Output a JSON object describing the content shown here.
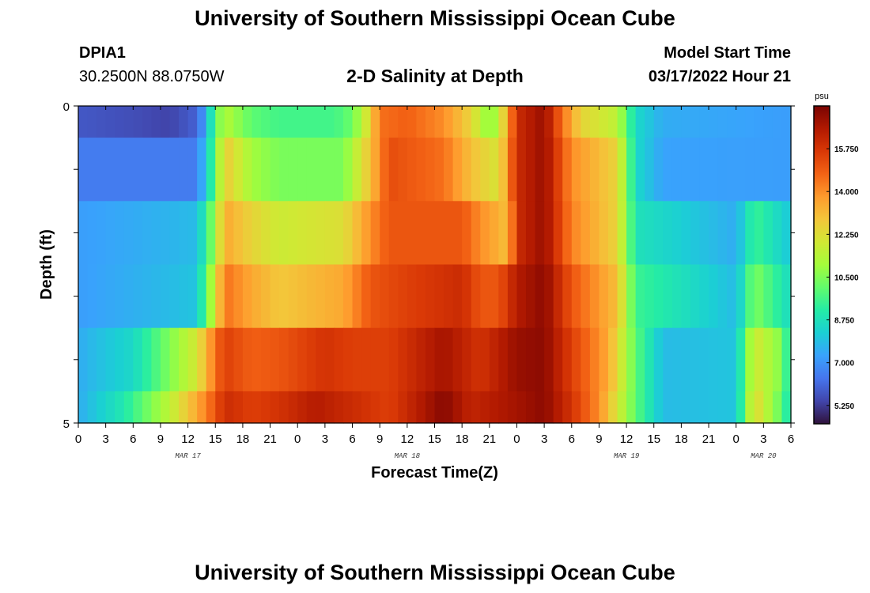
{
  "header": {
    "title": "University of Southern Mississippi Ocean Cube",
    "station_id": "DPIA1",
    "coords": "30.2500N  88.0750W",
    "subtitle": "2-D Salinity at Depth",
    "start_label": "Model Start Time",
    "start_value": "03/17/2022 Hour 21"
  },
  "footer": {
    "title": "University of Southern Mississippi Ocean Cube"
  },
  "chart_data": {
    "type": "heatmap",
    "title": "2-D Salinity at Depth",
    "xlabel": "Forecast Time(Z)",
    "ylabel": "Depth (ft)",
    "x_start_hour": 0,
    "x_end_hour": 78,
    "x_tick_labels": [
      "0",
      "3",
      "6",
      "9",
      "12",
      "15",
      "18",
      "21",
      "0",
      "3",
      "6",
      "9",
      "12",
      "15",
      "18",
      "21",
      "0",
      "3",
      "6",
      "9",
      "12",
      "15",
      "18",
      "21",
      "0",
      "3",
      "6"
    ],
    "day_labels": [
      "MAR 17",
      "MAR 18",
      "MAR 19",
      "MAR 20"
    ],
    "day_label_hours": [
      12,
      36,
      60,
      75
    ],
    "y_tick_labels": [
      "0",
      "5"
    ],
    "ylim": [
      0,
      5
    ],
    "colorbar": {
      "unit": "psu",
      "min": 4.5,
      "max": 17.5,
      "labels": [
        "15.750",
        "14.000",
        "12.250",
        "10.500",
        "8.750",
        "7.000",
        "5.250"
      ],
      "label_values": [
        15.75,
        14.0,
        12.25,
        10.5,
        8.75,
        7.0,
        5.25
      ],
      "colors": [
        "#30123b",
        "#4145ab",
        "#4675ed",
        "#39a2fc",
        "#1bcfd4",
        "#24eca6",
        "#61fc6c",
        "#a4fc3b",
        "#d1e834",
        "#f3c63a",
        "#fe9b2d",
        "#f36315",
        "#d93806",
        "#b11901",
        "#7a0402"
      ]
    },
    "depth_rows": [
      {
        "depth_range": [
          0.0,
          0.5
        ],
        "values": [
          {
            "hour": 0,
            "value": 5.8
          },
          {
            "hour": 6,
            "value": 5.6
          },
          {
            "hour": 10,
            "value": 5.4
          },
          {
            "hour": 13,
            "value": 6.0
          },
          {
            "hour": 14,
            "value": 7.5
          },
          {
            "hour": 15,
            "value": 10.0
          },
          {
            "hour": 16,
            "value": 11.3
          },
          {
            "hour": 19,
            "value": 10.0
          },
          {
            "hour": 22,
            "value": 9.6
          },
          {
            "hour": 28,
            "value": 9.6
          },
          {
            "hour": 30,
            "value": 10.2
          },
          {
            "hour": 32,
            "value": 12.5
          },
          {
            "hour": 33,
            "value": 14.5
          },
          {
            "hour": 36,
            "value": 14.8
          },
          {
            "hour": 40,
            "value": 14.0
          },
          {
            "hour": 43,
            "value": 12.5
          },
          {
            "hour": 45,
            "value": 10.5
          },
          {
            "hour": 46,
            "value": 11.5
          },
          {
            "hour": 47,
            "value": 13.5
          },
          {
            "hour": 48,
            "value": 16.0
          },
          {
            "hour": 51,
            "value": 17.0
          },
          {
            "hour": 53,
            "value": 14.5
          },
          {
            "hour": 55,
            "value": 12.5
          },
          {
            "hour": 59,
            "value": 11.5
          },
          {
            "hour": 61,
            "value": 8.5
          },
          {
            "hour": 64,
            "value": 7.5
          },
          {
            "hour": 78,
            "value": 7.2
          }
        ]
      },
      {
        "depth_range": [
          0.5,
          1.5
        ],
        "values": [
          {
            "hour": 0,
            "value": 6.5
          },
          {
            "hour": 13,
            "value": 6.5
          },
          {
            "hour": 15,
            "value": 10.0
          },
          {
            "hour": 16,
            "value": 12.8
          },
          {
            "hour": 19,
            "value": 11.0
          },
          {
            "hour": 22,
            "value": 10.4
          },
          {
            "hour": 29,
            "value": 10.4
          },
          {
            "hour": 32,
            "value": 13.0
          },
          {
            "hour": 34,
            "value": 15.2
          },
          {
            "hour": 40,
            "value": 14.5
          },
          {
            "hour": 43,
            "value": 13.0
          },
          {
            "hour": 46,
            "value": 12.0
          },
          {
            "hour": 48,
            "value": 16.0
          },
          {
            "hour": 51,
            "value": 17.0
          },
          {
            "hour": 54,
            "value": 14.0
          },
          {
            "hour": 59,
            "value": 12.5
          },
          {
            "hour": 61,
            "value": 8.5
          },
          {
            "hour": 64,
            "value": 7.3
          },
          {
            "hour": 78,
            "value": 7.2
          }
        ]
      },
      {
        "depth_range": [
          1.5,
          2.5
        ],
        "values": [
          {
            "hour": 0,
            "value": 7.2
          },
          {
            "hour": 13,
            "value": 7.8
          },
          {
            "hour": 15,
            "value": 11.0
          },
          {
            "hour": 16,
            "value": 13.5
          },
          {
            "hour": 19,
            "value": 12.5
          },
          {
            "hour": 22,
            "value": 11.8
          },
          {
            "hour": 29,
            "value": 12.2
          },
          {
            "hour": 32,
            "value": 14.0
          },
          {
            "hour": 34,
            "value": 15.0
          },
          {
            "hour": 42,
            "value": 15.0
          },
          {
            "hour": 44,
            "value": 14.0
          },
          {
            "hour": 47,
            "value": 13.0
          },
          {
            "hour": 48,
            "value": 16.0
          },
          {
            "hour": 51,
            "value": 17.0
          },
          {
            "hour": 54,
            "value": 14.2
          },
          {
            "hour": 59,
            "value": 12.5
          },
          {
            "hour": 61,
            "value": 8.8
          },
          {
            "hour": 72,
            "value": 7.5
          },
          {
            "hour": 74,
            "value": 9.5
          },
          {
            "hour": 78,
            "value": 8.0
          }
        ]
      },
      {
        "depth_range": [
          2.5,
          3.5
        ],
        "values": [
          {
            "hour": 0,
            "value": 7.2
          },
          {
            "hour": 13,
            "value": 8.0
          },
          {
            "hour": 15,
            "value": 12.0
          },
          {
            "hour": 16,
            "value": 14.5
          },
          {
            "hour": 19,
            "value": 13.5
          },
          {
            "hour": 22,
            "value": 12.8
          },
          {
            "hour": 29,
            "value": 13.5
          },
          {
            "hour": 32,
            "value": 15.0
          },
          {
            "hour": 36,
            "value": 15.5
          },
          {
            "hour": 42,
            "value": 16.0
          },
          {
            "hour": 44,
            "value": 15.0
          },
          {
            "hour": 46,
            "value": 15.0
          },
          {
            "hour": 48,
            "value": 16.5
          },
          {
            "hour": 51,
            "value": 17.2
          },
          {
            "hour": 54,
            "value": 15.0
          },
          {
            "hour": 59,
            "value": 13.0
          },
          {
            "hour": 61,
            "value": 9.5
          },
          {
            "hour": 72,
            "value": 7.8
          },
          {
            "hour": 74,
            "value": 10.5
          },
          {
            "hour": 78,
            "value": 8.5
          }
        ]
      },
      {
        "depth_range": [
          3.5,
          4.5
        ],
        "values": [
          {
            "hour": 0,
            "value": 7.5
          },
          {
            "hour": 6,
            "value": 8.5
          },
          {
            "hour": 10,
            "value": 10.5
          },
          {
            "hour": 13,
            "value": 12.0
          },
          {
            "hour": 15,
            "value": 14.5
          },
          {
            "hour": 16,
            "value": 15.5
          },
          {
            "hour": 19,
            "value": 14.8
          },
          {
            "hour": 22,
            "value": 15.0
          },
          {
            "hour": 27,
            "value": 15.8
          },
          {
            "hour": 30,
            "value": 15.5
          },
          {
            "hour": 34,
            "value": 15.5
          },
          {
            "hour": 40,
            "value": 16.8
          },
          {
            "hour": 44,
            "value": 15.8
          },
          {
            "hour": 48,
            "value": 17.0
          },
          {
            "hour": 51,
            "value": 17.2
          },
          {
            "hour": 54,
            "value": 15.5
          },
          {
            "hour": 58,
            "value": 13.5
          },
          {
            "hour": 61,
            "value": 10.0
          },
          {
            "hour": 64,
            "value": 7.8
          },
          {
            "hour": 72,
            "value": 8.0
          },
          {
            "hour": 74,
            "value": 12.0
          },
          {
            "hour": 77,
            "value": 10.5
          },
          {
            "hour": 78,
            "value": 8.5
          }
        ]
      },
      {
        "depth_range": [
          4.5,
          5.0
        ],
        "values": [
          {
            "hour": 0,
            "value": 7.5
          },
          {
            "hour": 5,
            "value": 9.0
          },
          {
            "hour": 10,
            "value": 11.5
          },
          {
            "hour": 13,
            "value": 13.5
          },
          {
            "hour": 15,
            "value": 15.0
          },
          {
            "hour": 16,
            "value": 16.0
          },
          {
            "hour": 19,
            "value": 15.5
          },
          {
            "hour": 22,
            "value": 15.8
          },
          {
            "hour": 26,
            "value": 16.5
          },
          {
            "hour": 30,
            "value": 16.0
          },
          {
            "hour": 34,
            "value": 15.5
          },
          {
            "hour": 40,
            "value": 17.3
          },
          {
            "hour": 43,
            "value": 16.2
          },
          {
            "hour": 48,
            "value": 16.8
          },
          {
            "hour": 51,
            "value": 17.2
          },
          {
            "hour": 54,
            "value": 15.8
          },
          {
            "hour": 57,
            "value": 14.0
          },
          {
            "hour": 61,
            "value": 10.0
          },
          {
            "hour": 64,
            "value": 7.8
          },
          {
            "hour": 72,
            "value": 8.0
          },
          {
            "hour": 74,
            "value": 12.5
          },
          {
            "hour": 77,
            "value": 10.0
          },
          {
            "hour": 78,
            "value": 8.5
          }
        ]
      }
    ]
  }
}
